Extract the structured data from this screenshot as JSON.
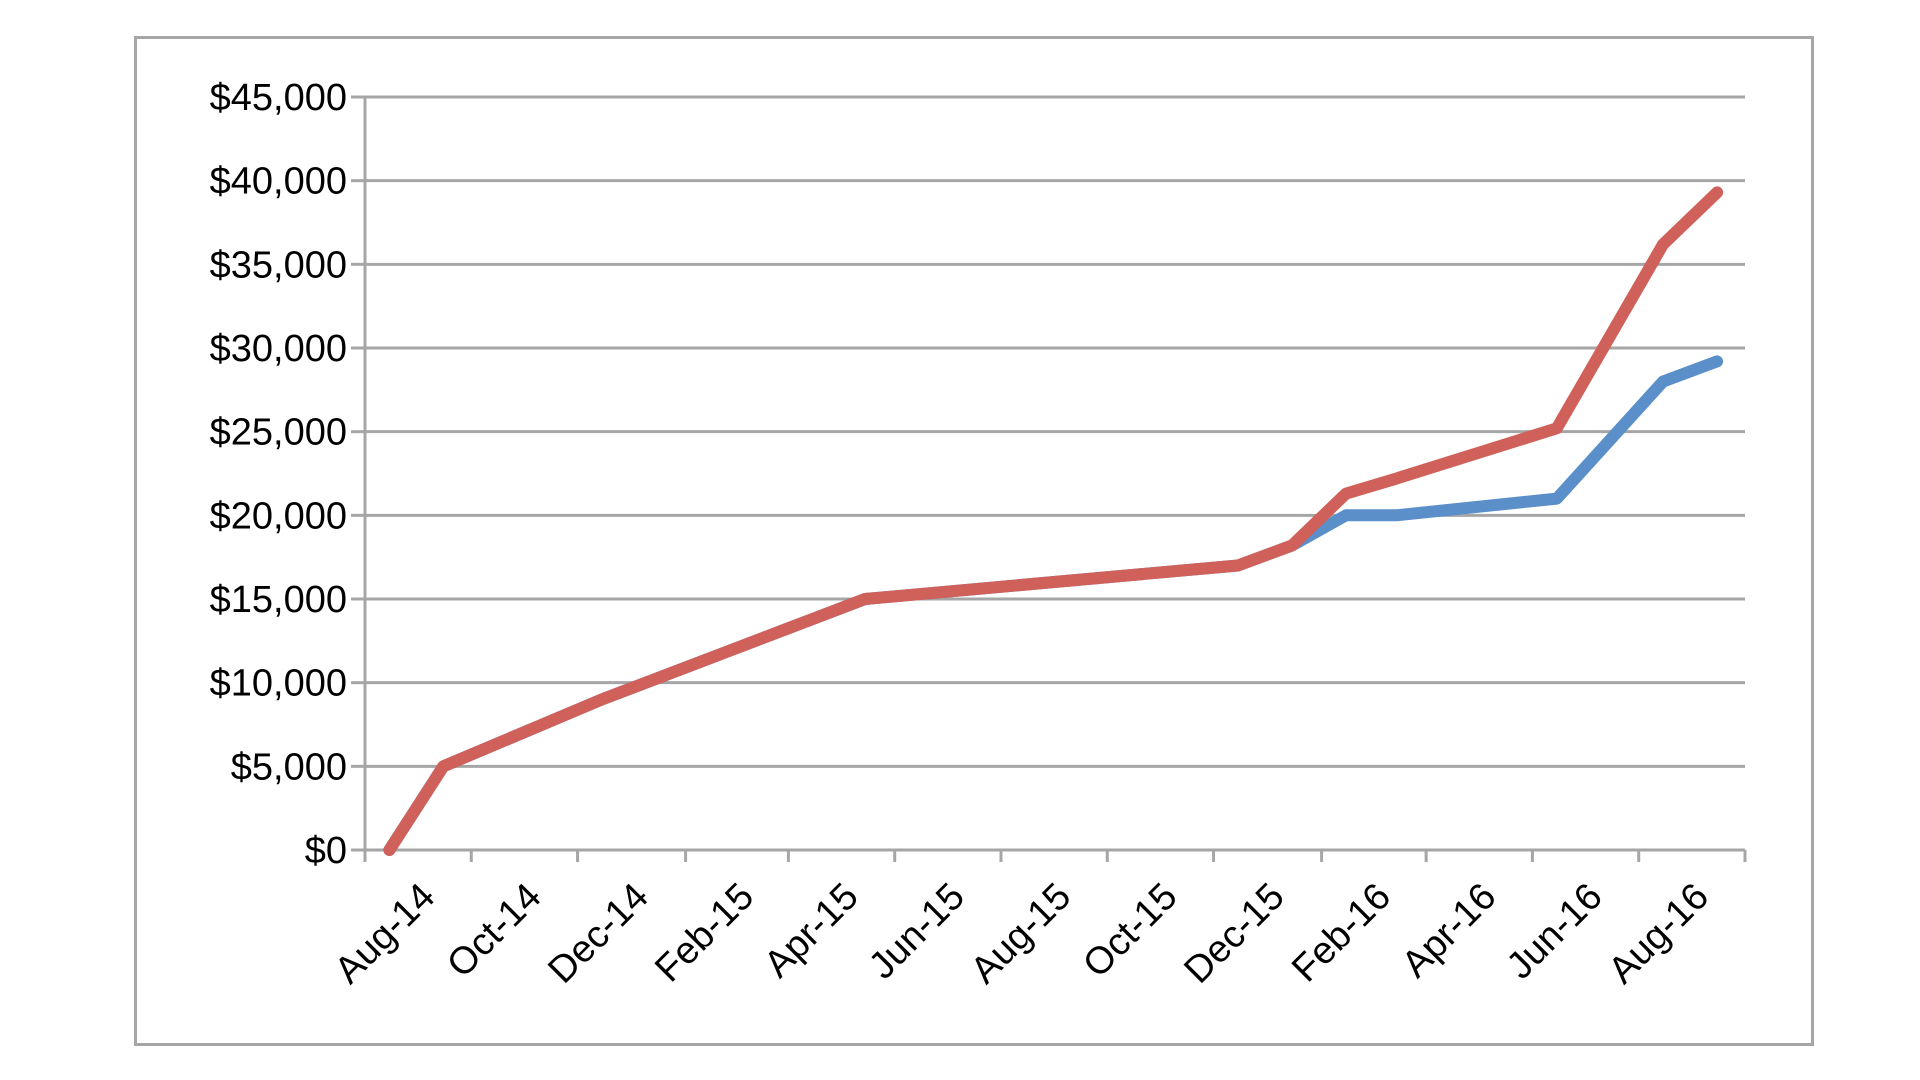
{
  "chart_data": {
    "type": "line",
    "title": "",
    "xlabel": "",
    "ylabel": "",
    "x_tick_labels": [
      "Aug-14",
      "Oct-14",
      "Dec-14",
      "Feb-15",
      "Apr-15",
      "Jun-15",
      "Aug-15",
      "Oct-15",
      "Dec-15",
      "Feb-16",
      "Apr-16",
      "Jun-16",
      "Aug-16"
    ],
    "y_tick_labels": [
      "$0",
      "$5,000",
      "$10,000",
      "$15,000",
      "$20,000",
      "$25,000",
      "$30,000",
      "$35,000",
      "$40,000",
      "$45,000"
    ],
    "ylim": [
      0,
      45000
    ],
    "xlim": [
      "2014-08-01",
      "2016-10-01"
    ],
    "grid": "horizontal",
    "legend": "none",
    "series": [
      {
        "color": "#5b8fc9",
        "points": [
          {
            "x": "2014-08-15",
            "y": 0
          },
          {
            "x": "2014-09-15",
            "y": 5000
          },
          {
            "x": "2014-12-15",
            "y": 9000
          },
          {
            "x": "2015-05-15",
            "y": 15000
          },
          {
            "x": "2015-12-15",
            "y": 17000
          },
          {
            "x": "2016-01-15",
            "y": 18200
          },
          {
            "x": "2016-02-15",
            "y": 20000
          },
          {
            "x": "2016-03-15",
            "y": 20000
          },
          {
            "x": "2016-06-15",
            "y": 21000
          },
          {
            "x": "2016-08-15",
            "y": 28000
          },
          {
            "x": "2016-09-15",
            "y": 29200
          }
        ]
      },
      {
        "color": "#d0605a",
        "points": [
          {
            "x": "2014-08-15",
            "y": 0
          },
          {
            "x": "2014-09-15",
            "y": 5000
          },
          {
            "x": "2014-12-15",
            "y": 9000
          },
          {
            "x": "2015-05-15",
            "y": 15000
          },
          {
            "x": "2015-12-15",
            "y": 17000
          },
          {
            "x": "2016-01-15",
            "y": 18200
          },
          {
            "x": "2016-02-15",
            "y": 21300
          },
          {
            "x": "2016-03-15",
            "y": 22200
          },
          {
            "x": "2016-06-15",
            "y": 25200
          },
          {
            "x": "2016-08-15",
            "y": 36200
          },
          {
            "x": "2016-09-15",
            "y": 39300
          }
        ]
      }
    ]
  }
}
